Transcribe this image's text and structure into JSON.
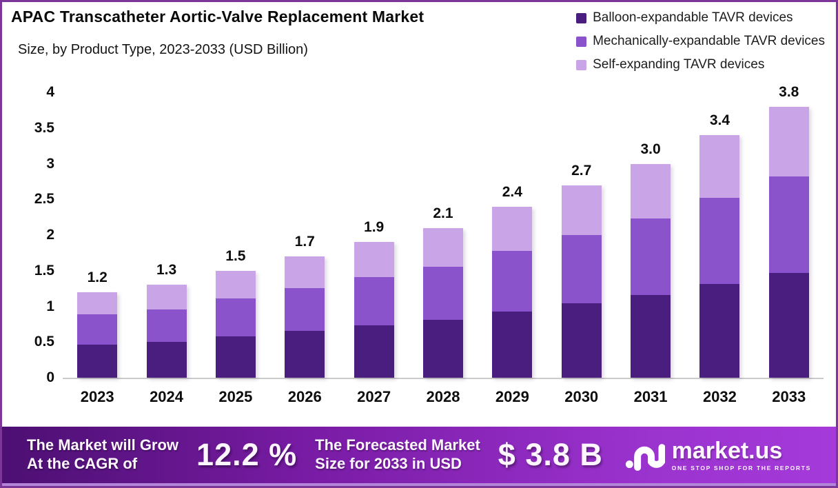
{
  "header": {
    "title": "APAC Transcatheter Aortic-Valve Replacement Market",
    "subtitle": "Size, by Product Type, 2023-2033 (USD Billion)"
  },
  "legend": [
    {
      "label": "Balloon-expandable TAVR devices",
      "color": "#4a1e7f"
    },
    {
      "label": "Mechanically-expandable TAVR devices",
      "color": "#8a52cb"
    },
    {
      "label": "Self-expanding TAVR devices",
      "color": "#c9a5e8"
    }
  ],
  "chart_data": {
    "type": "bar",
    "stacked": true,
    "title": "APAC Transcatheter Aortic-Valve Replacement Market",
    "subtitle": "Size, by Product Type, 2023-2033 (USD Billion)",
    "xlabel": "",
    "ylabel": "",
    "categories": [
      "2023",
      "2024",
      "2025",
      "2026",
      "2027",
      "2028",
      "2029",
      "2030",
      "2031",
      "2032",
      "2033"
    ],
    "series": [
      {
        "name": "Balloon-expandable TAVR devices",
        "color": "#4a1e7f",
        "values": [
          0.46,
          0.5,
          0.58,
          0.66,
          0.73,
          0.81,
          0.93,
          1.04,
          1.16,
          1.31,
          1.47
        ]
      },
      {
        "name": "Mechanically-expandable TAVR devices",
        "color": "#8a52cb",
        "values": [
          0.43,
          0.46,
          0.53,
          0.6,
          0.68,
          0.75,
          0.85,
          0.96,
          1.07,
          1.21,
          1.35
        ]
      },
      {
        "name": "Self-expanding TAVR devices",
        "color": "#c9a5e8",
        "values": [
          0.31,
          0.34,
          0.39,
          0.44,
          0.49,
          0.54,
          0.62,
          0.7,
          0.77,
          0.88,
          0.98
        ]
      }
    ],
    "totals": [
      1.2,
      1.3,
      1.5,
      1.7,
      1.9,
      2.1,
      2.4,
      2.7,
      3.0,
      3.4,
      3.8
    ],
    "total_labels": [
      "1.2",
      "1.3",
      "1.5",
      "1.7",
      "1.9",
      "2.1",
      "2.4",
      "2.7",
      "3.0",
      "3.4",
      "3.8"
    ],
    "ylim": [
      0,
      4
    ],
    "yticks": [
      0,
      0.5,
      1,
      1.5,
      2,
      2.5,
      3,
      3.5,
      4
    ],
    "ytick_labels": [
      "0",
      "0.5",
      "1",
      "1.5",
      "2",
      "2.5",
      "3",
      "3.5",
      "4"
    ],
    "grid": false,
    "legend_position": "top-right"
  },
  "footer": {
    "cagr_label": [
      "The Market will Grow",
      "At the CAGR of"
    ],
    "cagr_value": "12.2 %",
    "forecast_label": [
      "The Forecasted Market",
      "Size for 2033 in USD"
    ],
    "forecast_value": "$ 3.8 B",
    "brand": {
      "name": "market.us",
      "tagline": "ONE STOP SHOP FOR THE REPORTS"
    }
  },
  "colors": {
    "page_border": "#7c3598",
    "axis_line": "#cbcbcb",
    "footer_gradient_start": "#4c0f72",
    "footer_gradient_end": "#a43ada",
    "bottom_strip": "#b285d8"
  }
}
